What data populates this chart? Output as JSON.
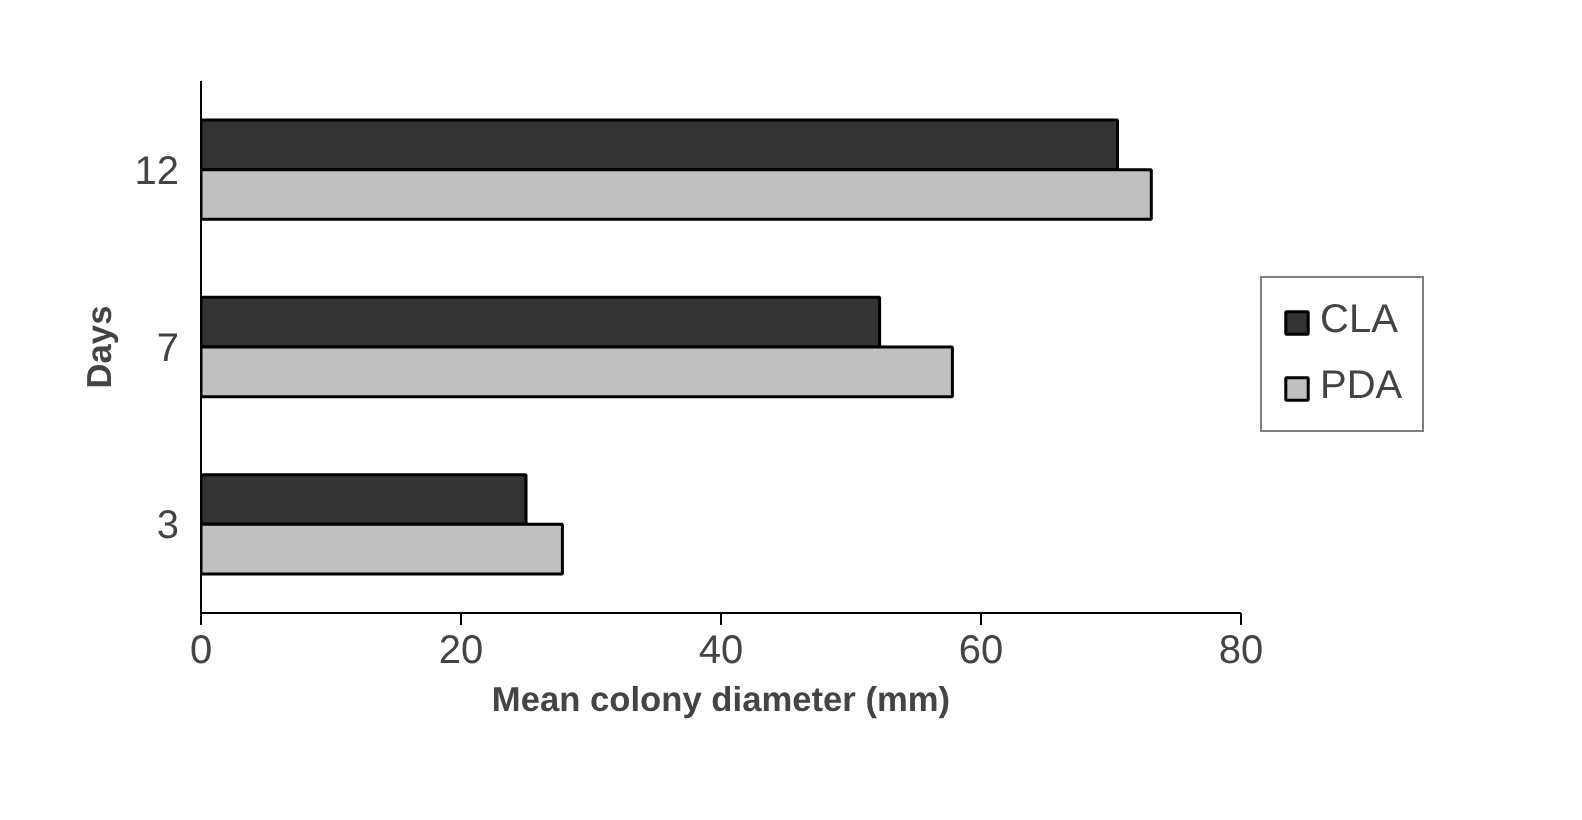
{
  "chart_data": {
    "type": "bar",
    "orientation": "horizontal",
    "xlabel": "Mean colony diameter (mm)",
    "ylabel": "Days",
    "categories": [
      "12",
      "7",
      "3"
    ],
    "series": [
      {
        "name": "CLA",
        "color": "#333333",
        "values": [
          70.5,
          52.2,
          25.0
        ]
      },
      {
        "name": "PDA",
        "color": "#c0c0c0",
        "values": [
          73.1,
          57.8,
          27.8
        ]
      }
    ],
    "xlim": [
      0,
      80
    ],
    "xticks": [
      0,
      20,
      40,
      60,
      80
    ],
    "grid": false,
    "legend": "right"
  }
}
